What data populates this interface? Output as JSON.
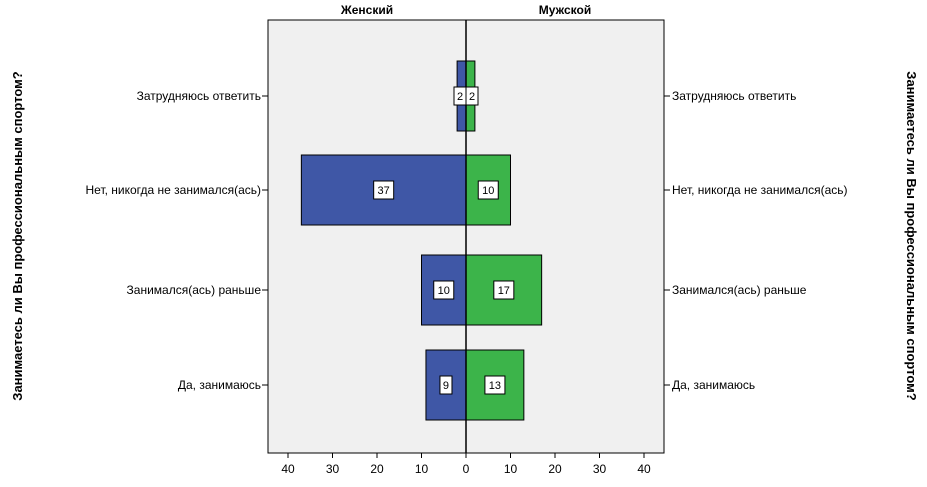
{
  "chart_data": {
    "type": "bar",
    "panel_titles": [
      "Женский",
      "Мужской"
    ],
    "axis_title": "Занимаетесь ли Вы профессиональным спортом?",
    "categories": [
      "Затрудняюсь ответить",
      "Нет, никогда не занимался(ась)",
      "Занимался(ась) раньше",
      "Да, занимаюсь"
    ],
    "series": [
      {
        "name": "Женский",
        "values": [
          2,
          37,
          10,
          9
        ],
        "color": "#3f57a6"
      },
      {
        "name": "Мужской",
        "values": [
          2,
          10,
          17,
          13
        ],
        "color": "#3cb44a"
      }
    ],
    "xlim": [
      0,
      40
    ],
    "x_ticks": [
      40,
      30,
      20,
      10,
      0,
      10,
      20,
      30,
      40
    ],
    "plot_background": "#f0f0f0"
  }
}
